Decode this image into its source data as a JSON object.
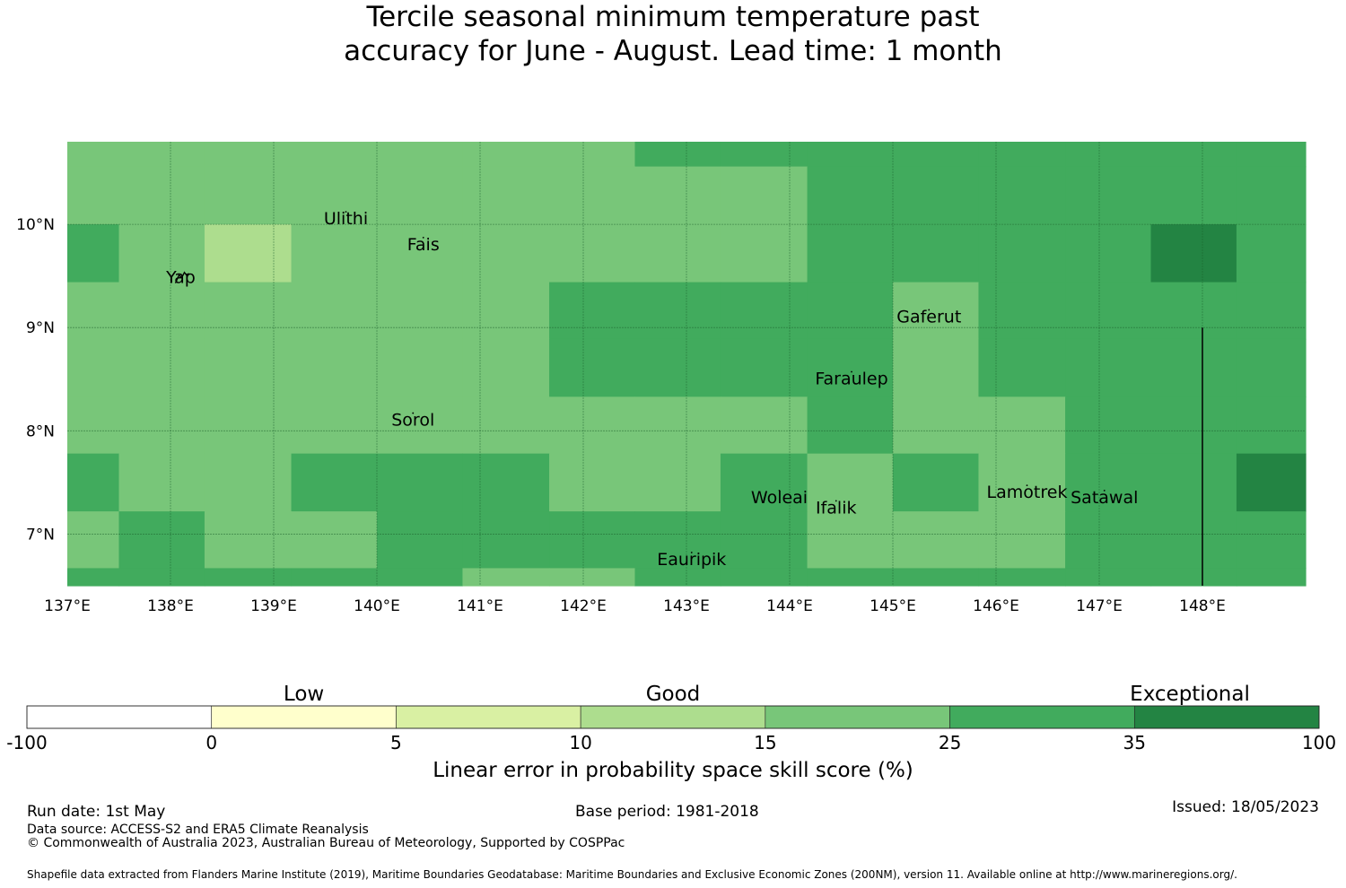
{
  "title": {
    "line1": "Tercile seasonal minimum temperature past",
    "line2": "accuracy for June - August. Lead time: 1 month"
  },
  "map": {
    "lon_range": [
      137,
      149
    ],
    "lat_range": [
      6.5,
      10.8
    ],
    "lon_ticks": [
      "137°E",
      "138°E",
      "139°E",
      "140°E",
      "141°E",
      "142°E",
      "143°E",
      "144°E",
      "145°E",
      "146°E",
      "147°E",
      "148°E"
    ],
    "lat_ticks": [
      "10°N",
      "9°N",
      "8°N",
      "7°N"
    ],
    "cell_colors": [
      "#ffffff",
      "#ffffcc",
      "#d9f0a3",
      "#addd8e",
      "#78c679",
      "#41ab5d",
      "#238443"
    ],
    "col_edges": [
      137.0,
      137.5,
      138.33,
      139.17,
      140.0,
      140.83,
      141.67,
      142.5,
      143.33,
      144.17,
      145.0,
      145.83,
      146.67,
      147.5,
      148.33,
      149.0
    ],
    "row_edges": [
      10.8,
      10.56,
      10.0,
      9.44,
      8.89,
      8.33,
      7.78,
      7.22,
      6.67,
      6.5
    ],
    "grid": [
      [
        4,
        4,
        4,
        4,
        4,
        4,
        4,
        5,
        5,
        5,
        5,
        5,
        5,
        5,
        5
      ],
      [
        4,
        4,
        4,
        4,
        4,
        4,
        4,
        4,
        4,
        5,
        5,
        5,
        5,
        5,
        5
      ],
      [
        5,
        4,
        3,
        4,
        4,
        4,
        4,
        4,
        4,
        5,
        5,
        5,
        5,
        6,
        5
      ],
      [
        4,
        4,
        4,
        4,
        4,
        4,
        5,
        5,
        5,
        5,
        4,
        5,
        5,
        5,
        5
      ],
      [
        4,
        4,
        4,
        4,
        4,
        4,
        5,
        5,
        5,
        5,
        4,
        5,
        5,
        5,
        5
      ],
      [
        4,
        4,
        4,
        4,
        4,
        4,
        4,
        4,
        4,
        5,
        4,
        4,
        5,
        5,
        5
      ],
      [
        5,
        4,
        4,
        5,
        5,
        5,
        4,
        4,
        5,
        4,
        5,
        4,
        5,
        5,
        6
      ],
      [
        4,
        5,
        4,
        4,
        5,
        5,
        5,
        5,
        5,
        4,
        4,
        4,
        5,
        5,
        5
      ],
      [
        5,
        5,
        5,
        5,
        5,
        4,
        4,
        5,
        5,
        5,
        5,
        5,
        5,
        5,
        5
      ]
    ],
    "islands": [
      {
        "name": "Yap",
        "lon": 138.1,
        "lat": 9.5
      },
      {
        "name": "Ulithi",
        "lon": 139.7,
        "lat": 10.0
      },
      {
        "name": "Fais",
        "lon": 140.45,
        "lat": 9.75
      },
      {
        "name": "Gaferut",
        "lon": 145.35,
        "lat": 9.05
      },
      {
        "name": "Faraulep",
        "lon": 144.6,
        "lat": 8.45
      },
      {
        "name": "Sorol",
        "lon": 140.35,
        "lat": 8.05
      },
      {
        "name": "Woleai",
        "lon": 143.9,
        "lat": 7.3
      },
      {
        "name": "Ifalik",
        "lon": 144.45,
        "lat": 7.2
      },
      {
        "name": "Lamotrek",
        "lon": 146.3,
        "lat": 7.35
      },
      {
        "name": "Satawal",
        "lon": 147.05,
        "lat": 7.3
      },
      {
        "name": "Eauripik",
        "lon": 143.05,
        "lat": 6.7
      }
    ]
  },
  "legend": {
    "category_labels": [
      "Low",
      "Good",
      "Exceptional"
    ],
    "boundaries": [
      "-100",
      "0",
      "5",
      "10",
      "15",
      "25",
      "35",
      "100"
    ],
    "colors": [
      "#ffffff",
      "#ffffcc",
      "#d9f0a3",
      "#addd8e",
      "#78c679",
      "#41ab5d",
      "#238443"
    ],
    "label": "Linear error in probability space skill score (%)"
  },
  "footer": {
    "run_date": "Run date: 1st May",
    "base_period": "Base period: 1981-2018",
    "issued": "Issued: 18/05/2023",
    "data_source": "Data source: ACCESS-S2 and ERA5 Climate Reanalysis",
    "copyright": "© Commonwealth of Australia 2023, Australian Bureau of Meteorology, Supported by COSPPac",
    "shapefile": "Shapefile data extracted from Flanders Marine Institute (2019), Maritime Boundaries Geodatabase: Maritime Boundaries and Exclusive Economic Zones (200NM), version 11. Available online at http://www.marineregions.org/."
  }
}
